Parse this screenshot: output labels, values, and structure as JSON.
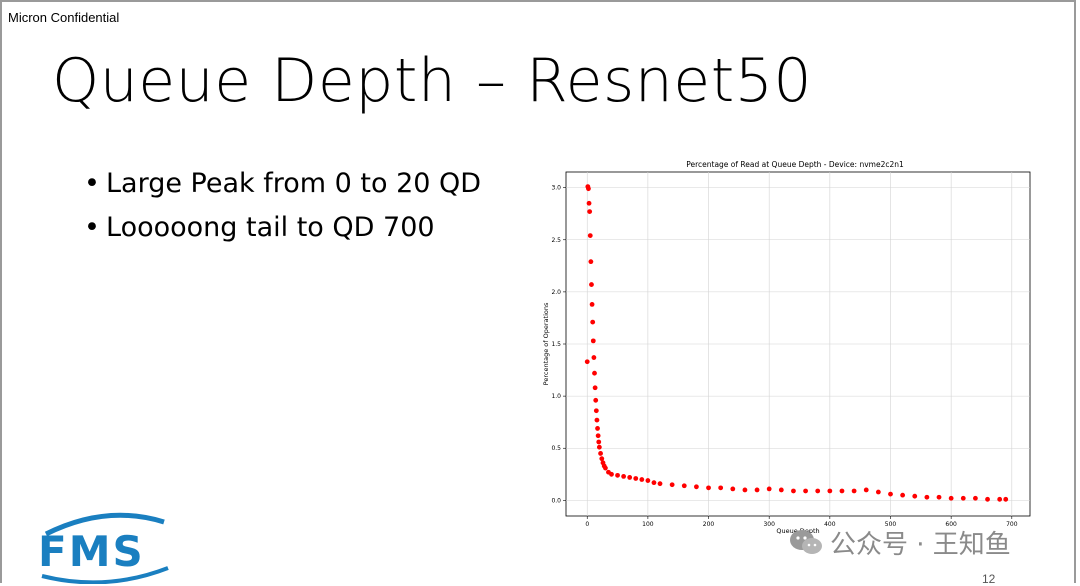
{
  "header": {
    "confidential": "Micron Confidential"
  },
  "slide": {
    "title": "Queue Depth – Resnet50",
    "bullets": [
      "Large Peak from 0 to 20 QD",
      "Looooong tail to QD 700"
    ],
    "page_number": "12"
  },
  "logo": {
    "text": "FMS",
    "color": "#1a7fc0"
  },
  "watermark": {
    "text": "公众号 · 王知鱼",
    "icon": "wechat-icon"
  },
  "chart_data": {
    "type": "scatter",
    "title": "Percentage of Read at Queue Depth - Device: nvme2c2n1",
    "xlabel": "Queue Depth",
    "ylabel": "Percentage of Operations",
    "xlim": [
      -35,
      730
    ],
    "ylim": [
      -0.15,
      3.15
    ],
    "xticks": [
      0,
      100,
      200,
      300,
      400,
      500,
      600,
      700
    ],
    "yticks": [
      0.0,
      0.5,
      1.0,
      1.5,
      2.0,
      2.5,
      3.0
    ],
    "grid": true,
    "marker_color": "#ff0000",
    "series": [
      {
        "x": [
          0,
          1,
          2,
          3,
          4,
          5,
          6,
          7,
          8,
          9,
          10,
          11,
          12,
          13,
          14,
          15,
          16,
          17,
          18,
          19,
          20,
          22,
          24,
          26,
          28,
          30,
          35,
          40,
          50,
          60,
          70,
          80,
          90,
          100,
          110,
          120,
          140,
          160,
          180,
          200,
          220,
          240,
          260,
          280,
          300,
          320,
          340,
          360,
          380,
          400,
          420,
          440,
          460,
          480,
          500,
          520,
          540,
          560,
          580,
          600,
          620,
          640,
          660,
          680,
          690
        ],
        "y": [
          1.33,
          3.01,
          2.99,
          2.85,
          2.77,
          2.54,
          2.29,
          2.07,
          1.88,
          1.71,
          1.53,
          1.37,
          1.22,
          1.08,
          0.96,
          0.86,
          0.77,
          0.69,
          0.62,
          0.56,
          0.51,
          0.45,
          0.4,
          0.36,
          0.33,
          0.31,
          0.27,
          0.25,
          0.24,
          0.23,
          0.22,
          0.21,
          0.2,
          0.19,
          0.17,
          0.16,
          0.15,
          0.14,
          0.13,
          0.12,
          0.12,
          0.11,
          0.1,
          0.1,
          0.11,
          0.1,
          0.09,
          0.09,
          0.09,
          0.09,
          0.09,
          0.09,
          0.1,
          0.08,
          0.06,
          0.05,
          0.04,
          0.03,
          0.03,
          0.02,
          0.02,
          0.02,
          0.01,
          0.01,
          0.01
        ]
      }
    ]
  }
}
